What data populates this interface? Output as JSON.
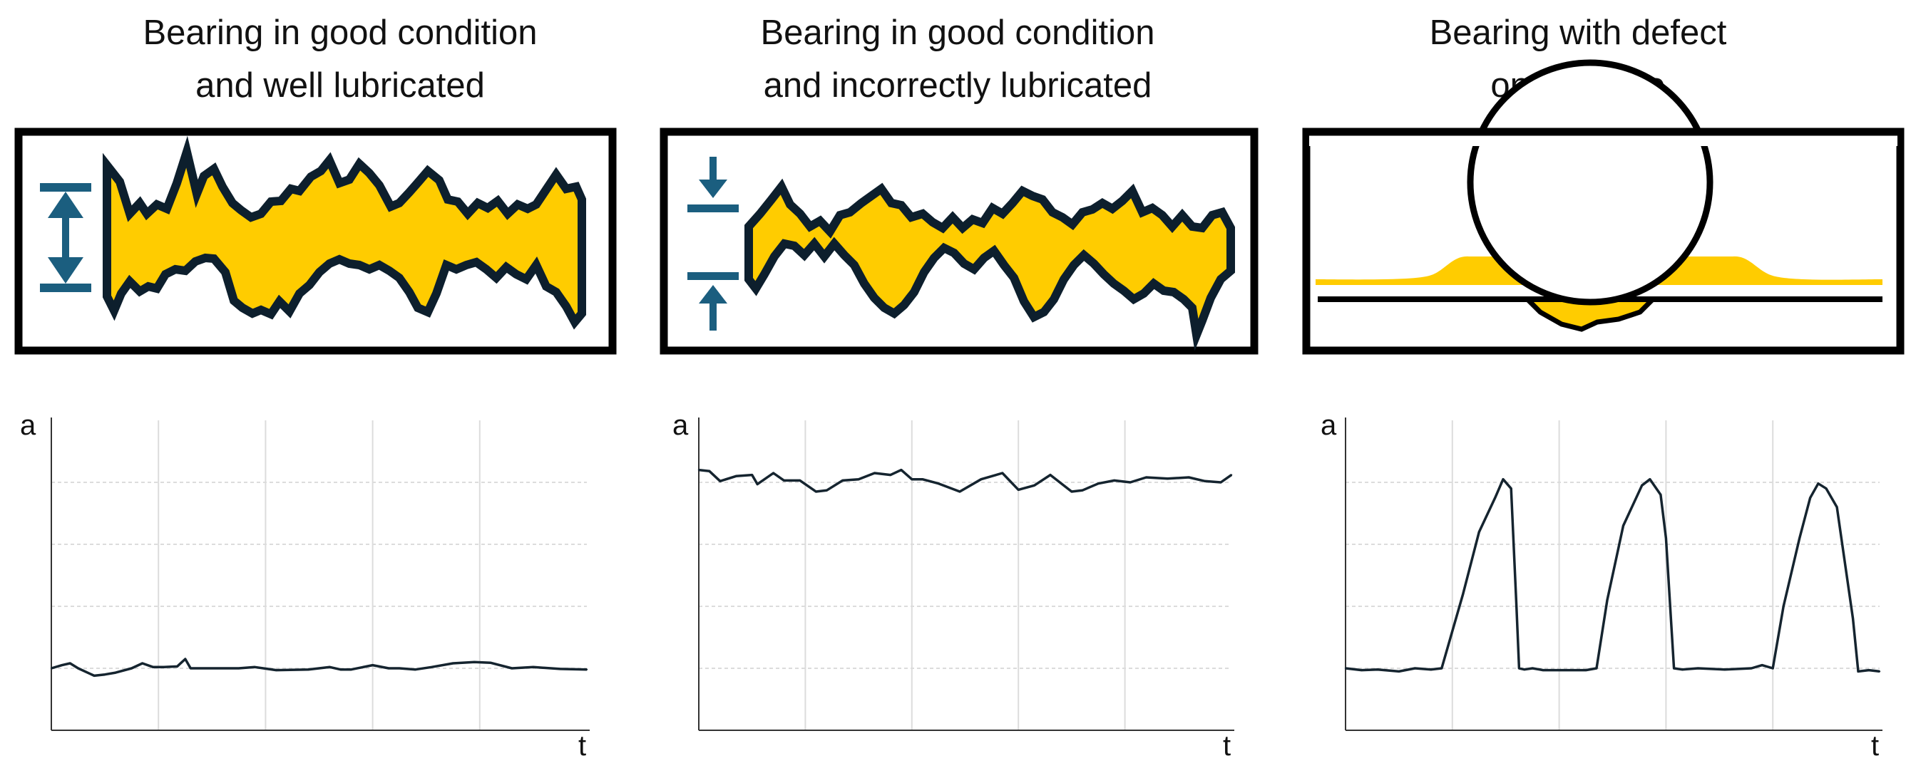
{
  "colors": {
    "film": "#ffcc00",
    "outline": "#0d1f2d",
    "arrow": "#1b5e7f",
    "frame": "#000000",
    "grid": "#dcdcdc",
    "trace": "#15242f"
  },
  "panels": [
    {
      "title_line1": "Bearing in good condition",
      "title_line2": "and well lubricated",
      "illustration": "thick-lubricant-film-with-expansion-arrows",
      "chart_data": {
        "type": "line",
        "xlabel": "t",
        "ylabel": "a",
        "ylim": [
          0,
          5
        ],
        "grid": true,
        "x": [
          0.0,
          0.2,
          0.35,
          0.5,
          0.8,
          1.0,
          1.2,
          1.5,
          1.7,
          1.9,
          2.1,
          2.35,
          2.5,
          2.6,
          2.8,
          3.1,
          3.5,
          3.8,
          4.2,
          4.8,
          5.2,
          5.4,
          5.6,
          6.0,
          6.3,
          6.5,
          6.8,
          7.1,
          7.5,
          7.9,
          8.2,
          8.6,
          9.0,
          9.5,
          10.0
        ],
        "y": [
          1.0,
          1.05,
          1.08,
          1.0,
          0.88,
          0.9,
          0.93,
          1.0,
          1.08,
          1.02,
          1.02,
          1.03,
          1.15,
          1.0,
          1.0,
          1.0,
          1.0,
          1.02,
          0.97,
          0.98,
          1.02,
          0.98,
          0.98,
          1.05,
          1.0,
          1.0,
          0.98,
          1.02,
          1.08,
          1.1,
          1.09,
          1.0,
          1.02,
          0.99,
          0.98
        ]
      }
    },
    {
      "title_line1": "Bearing in good condition",
      "title_line2": "and incorrectly lubricated",
      "illustration": "thin-lubricant-film-with-compression-arrows",
      "chart_data": {
        "type": "line",
        "xlabel": "t",
        "ylabel": "a",
        "ylim": [
          0,
          5
        ],
        "grid": true,
        "x": [
          0.0,
          0.2,
          0.4,
          0.7,
          1.0,
          1.1,
          1.4,
          1.6,
          1.9,
          2.2,
          2.4,
          2.7,
          3.0,
          3.3,
          3.6,
          3.8,
          4.0,
          4.2,
          4.5,
          4.9,
          5.3,
          5.7,
          6.0,
          6.3,
          6.6,
          7.0,
          7.2,
          7.5,
          7.8,
          8.1,
          8.4,
          8.8,
          9.2,
          9.5,
          9.8,
          10.0
        ],
        "y": [
          4.2,
          4.18,
          4.02,
          4.1,
          4.12,
          3.97,
          4.15,
          4.03,
          4.03,
          3.85,
          3.87,
          4.03,
          4.05,
          4.15,
          4.12,
          4.2,
          4.05,
          4.05,
          3.98,
          3.85,
          4.05,
          4.15,
          3.88,
          3.95,
          4.12,
          3.85,
          3.87,
          3.98,
          4.03,
          4.0,
          4.08,
          4.06,
          4.08,
          4.02,
          4.0,
          4.12
        ]
      }
    },
    {
      "title_line1": "Bearing with defect",
      "title_line2": "on the race",
      "illustration": "rolling-element-in-race-defect",
      "chart_data": {
        "type": "line",
        "xlabel": "t",
        "ylabel": "a",
        "ylim": [
          0,
          5
        ],
        "grid": true,
        "x": [
          0.0,
          0.3,
          0.6,
          1.0,
          1.3,
          1.6,
          1.8,
          2.2,
          2.5,
          2.8,
          2.95,
          3.1,
          3.2,
          3.25,
          3.35,
          3.5,
          3.7,
          4.0,
          4.5,
          4.7,
          4.9,
          5.2,
          5.55,
          5.7,
          5.9,
          6.0,
          6.15,
          6.3,
          6.6,
          7.1,
          7.6,
          7.8,
          8.0,
          8.2,
          8.5,
          8.7,
          8.85,
          9.0,
          9.2,
          9.5,
          9.6,
          9.8,
          10.0
        ],
        "y": [
          1.0,
          0.97,
          0.98,
          0.95,
          1.0,
          0.98,
          1.0,
          2.2,
          3.2,
          3.75,
          4.05,
          3.9,
          2.0,
          1.0,
          0.98,
          1.0,
          0.97,
          0.97,
          0.97,
          1.0,
          2.1,
          3.3,
          3.95,
          4.05,
          3.8,
          3.1,
          1.0,
          0.98,
          1.0,
          0.98,
          1.0,
          1.05,
          1.0,
          2.0,
          3.1,
          3.75,
          3.98,
          3.9,
          3.6,
          1.8,
          0.95,
          0.97,
          0.95
        ]
      }
    }
  ]
}
